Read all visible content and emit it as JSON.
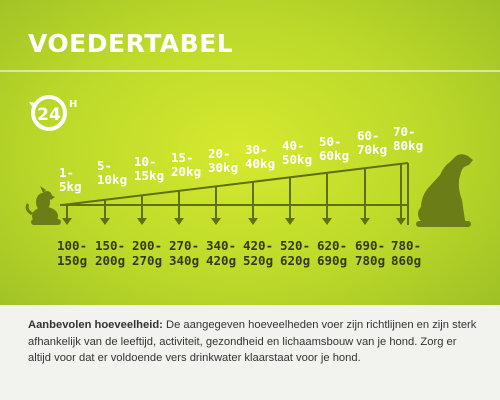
{
  "header": {
    "title": "VOEDERTABEL"
  },
  "badge": {
    "number": "24",
    "unit": "H",
    "icon": "24h-clock-icon"
  },
  "colors": {
    "accent": "#c8df2a",
    "weight_text": "#ffffff",
    "amount_text": "#333b10",
    "dog_silhouette": "#6b7d16"
  },
  "icons": {
    "small_dog": "small-dog-silhouette-icon",
    "large_dog": "large-dog-silhouette-icon"
  },
  "weights": [
    {
      "line1": "1-",
      "line2": "5kg"
    },
    {
      "line1": "5-",
      "line2": "10kg"
    },
    {
      "line1": "10-",
      "line2": "15kg"
    },
    {
      "line1": "15-",
      "line2": "20kg"
    },
    {
      "line1": "20-",
      "line2": "30kg"
    },
    {
      "line1": "30-",
      "line2": "40kg"
    },
    {
      "line1": "40-",
      "line2": "50kg"
    },
    {
      "line1": "50-",
      "line2": "60kg"
    },
    {
      "line1": "60-",
      "line2": "70kg"
    },
    {
      "line1": "70-",
      "line2": "80kg"
    }
  ],
  "amounts": [
    {
      "line1": "100-",
      "line2": "150g"
    },
    {
      "line1": "150-",
      "line2": "200g"
    },
    {
      "line1": "200-",
      "line2": "270g"
    },
    {
      "line1": "270-",
      "line2": "340g"
    },
    {
      "line1": "340-",
      "line2": "420g"
    },
    {
      "line1": "420-",
      "line2": "520g"
    },
    {
      "line1": "520-",
      "line2": "620g"
    },
    {
      "line1": "620-",
      "line2": "690g"
    },
    {
      "line1": "690-",
      "line2": "780g"
    },
    {
      "line1": "780-",
      "line2": "860g"
    }
  ],
  "note": {
    "label": "Aanbevolen hoeveelheid:",
    "text": "De aangegeven hoeveelheden voer zijn richtlijnen en zijn sterk afhankelijk van de leeftijd, activiteit, gezondheid en lichaamsbouw van je hond. Zorg er altijd voor dat er voldoende vers drinkwater klaarstaat voor je hond."
  }
}
